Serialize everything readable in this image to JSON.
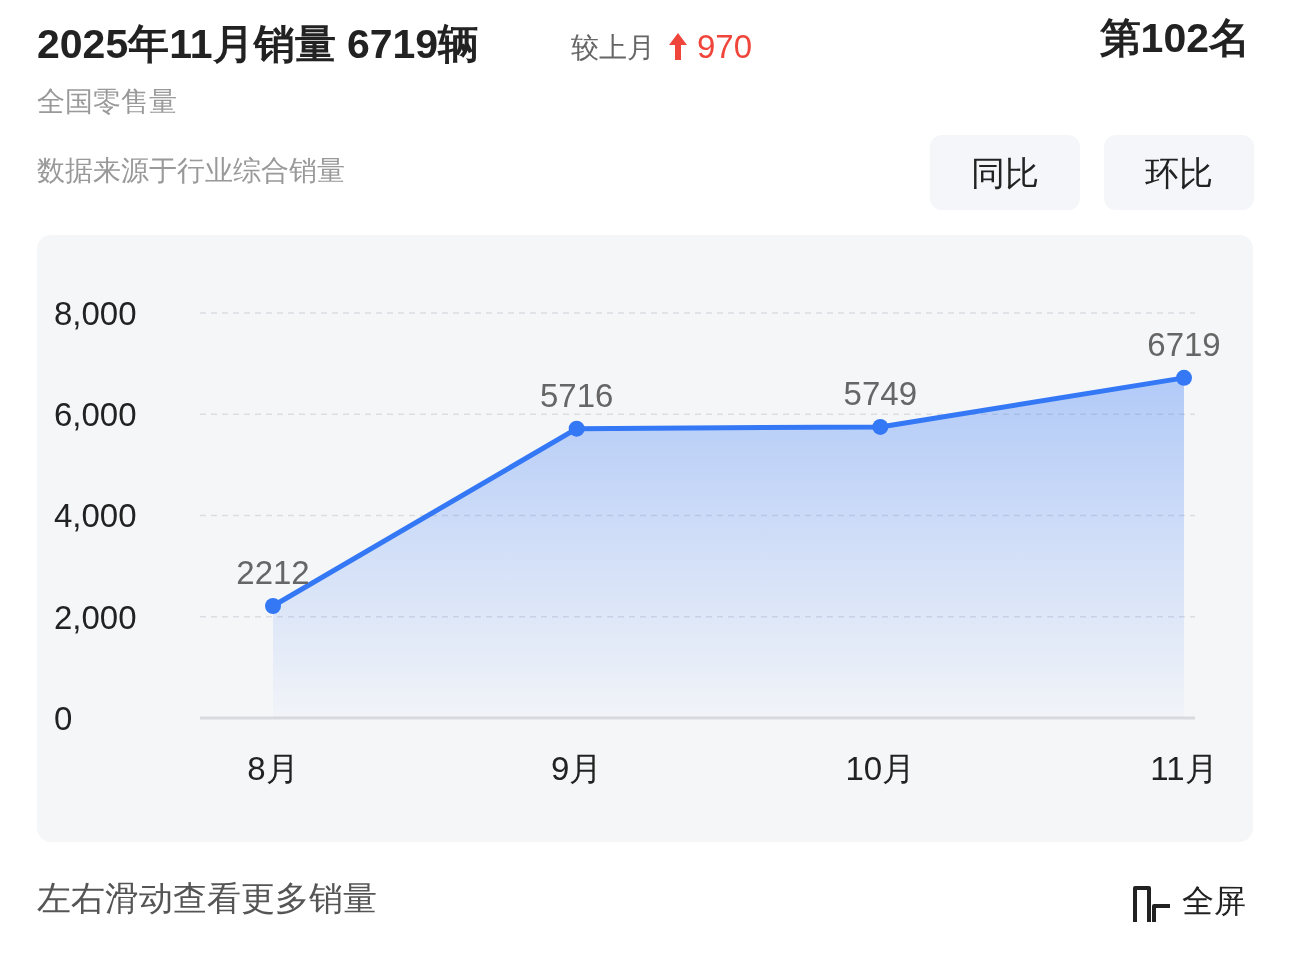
{
  "chart_data": {
    "type": "area",
    "title": "2025年11月销量 6719辆",
    "subtitle": "全国零售量",
    "annotations": [
      "较上月",
      "970",
      "第102名",
      "数据来源于行业综合销量",
      "同比",
      "环比",
      "左右滑动查看更多销量",
      "全屏"
    ],
    "categories": [
      "8月",
      "9月",
      "10月",
      "11月"
    ],
    "series": [
      {
        "color": "#3478f6",
        "values": [
          2212,
          5716,
          5749,
          6719
        ]
      }
    ],
    "ylim": [
      0,
      8000
    ],
    "yticks": [
      0,
      {
        "value": 2000,
        "label": "2,000"
      },
      {
        "value": 4000,
        "label": "4,000"
      },
      {
        "value": 6000,
        "label": "6,000"
      },
      {
        "value": 8000,
        "label": "8,000"
      }
    ],
    "grid": "y",
    "marker": "circle",
    "data_labels": true
  }
}
